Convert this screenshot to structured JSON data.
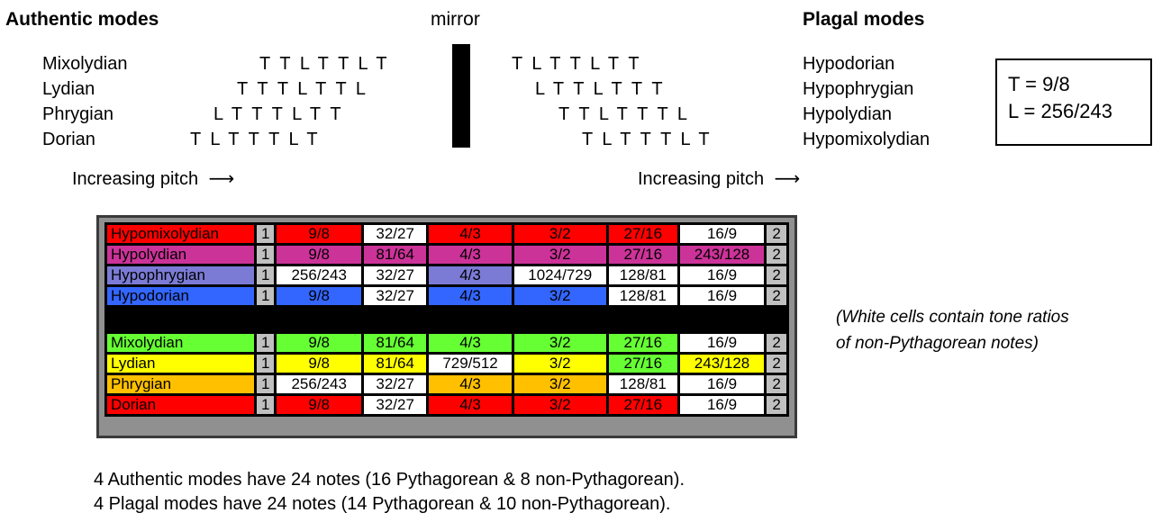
{
  "headers": {
    "authentic": "Authentic modes",
    "mirror": "mirror",
    "plagal": "Plagal modes"
  },
  "authentic_modes": [
    {
      "name": "Mixolydian",
      "sequence": "TTLTTLT"
    },
    {
      "name": "Lydian",
      "sequence": "TTTLTTL"
    },
    {
      "name": "Phrygian",
      "sequence": "LTTTLTT"
    },
    {
      "name": "Dorian",
      "sequence": "TLTTTLT"
    }
  ],
  "plagal_modes": [
    {
      "name": "Hypodorian",
      "sequence": "TLTTLTT"
    },
    {
      "name": "Hypophrygian",
      "sequence": "LTTLTTT"
    },
    {
      "name": "Hypolydian",
      "sequence": "TTLTTTL"
    },
    {
      "name": "Hypomixolydian",
      "sequence": "TLTTTLT"
    }
  ],
  "pitch_labels": {
    "left": "Increasing pitch",
    "right": "Increasing pitch",
    "arrow": "⟶"
  },
  "formula": {
    "line1": "T = 9/8",
    "line2": "L = 256/243"
  },
  "ratio_table": {
    "rows": [
      {
        "name": "Hypomixolydian",
        "name_color": "#ff0000",
        "values": [
          "1",
          "9/8",
          "32/27",
          "4/3",
          "3/2",
          "27/16",
          "16/9",
          "2"
        ],
        "colors": [
          "#c0c0c0",
          "#ff0000",
          "#ffffff",
          "#ff0000",
          "#ff0000",
          "#ff0000",
          "#ffffff",
          "#c0c0c0"
        ]
      },
      {
        "name": "Hypolydian",
        "name_color": "#cc3399",
        "values": [
          "1",
          "9/8",
          "81/64",
          "4/3",
          "3/2",
          "27/16",
          "243/128",
          "2"
        ],
        "colors": [
          "#c0c0c0",
          "#cc3399",
          "#cc3399",
          "#cc3399",
          "#cc3399",
          "#cc3399",
          "#cc3399",
          "#c0c0c0"
        ]
      },
      {
        "name": "Hypophrygian",
        "name_color": "#7b7bd6",
        "values": [
          "1",
          "256/243",
          "32/27",
          "4/3",
          "1024/729",
          "128/81",
          "16/9",
          "2"
        ],
        "colors": [
          "#c0c0c0",
          "#ffffff",
          "#ffffff",
          "#7b7bd6",
          "#ffffff",
          "#ffffff",
          "#ffffff",
          "#c0c0c0"
        ]
      },
      {
        "name": "Hypodorian",
        "name_color": "#3366ff",
        "values": [
          "1",
          "9/8",
          "32/27",
          "4/3",
          "3/2",
          "128/81",
          "16/9",
          "2"
        ],
        "colors": [
          "#c0c0c0",
          "#3366ff",
          "#ffffff",
          "#3366ff",
          "#3366ff",
          "#ffffff",
          "#ffffff",
          "#c0c0c0"
        ]
      },
      {
        "separator": true
      },
      {
        "name": "Mixolydian",
        "name_color": "#66ff33",
        "values": [
          "1",
          "9/8",
          "81/64",
          "4/3",
          "3/2",
          "27/16",
          "16/9",
          "2"
        ],
        "colors": [
          "#c0c0c0",
          "#66ff33",
          "#66ff33",
          "#66ff33",
          "#66ff33",
          "#66ff33",
          "#ffffff",
          "#c0c0c0"
        ]
      },
      {
        "name": "Lydian",
        "name_color": "#ffff00",
        "values": [
          "1",
          "9/8",
          "81/64",
          "729/512",
          "3/2",
          "27/16",
          "243/128",
          "2"
        ],
        "colors": [
          "#c0c0c0",
          "#ffff00",
          "#ffff00",
          "#ffffff",
          "#ffff00",
          "#66ff33",
          "#ffff00",
          "#c0c0c0"
        ]
      },
      {
        "name": "Phrygian",
        "name_color": "#ffc000",
        "values": [
          "1",
          "256/243",
          "32/27",
          "4/3",
          "3/2",
          "128/81",
          "16/9",
          "2"
        ],
        "colors": [
          "#c0c0c0",
          "#ffffff",
          "#ffffff",
          "#ffc000",
          "#ffc000",
          "#ffffff",
          "#ffffff",
          "#c0c0c0"
        ]
      },
      {
        "name": "Dorian",
        "name_color": "#ff0000",
        "values": [
          "1",
          "9/8",
          "32/27",
          "4/3",
          "3/2",
          "27/16",
          "16/9",
          "2"
        ],
        "colors": [
          "#c0c0c0",
          "#ff0000",
          "#ffffff",
          "#ff0000",
          "#ff0000",
          "#ff0000",
          "#ffffff",
          "#c0c0c0"
        ]
      }
    ]
  },
  "note": {
    "line1": "(White cells contain tone ratios",
    "line2": "of non-Pythagorean notes)"
  },
  "summary": {
    "line1": "4 Authentic modes have 24 notes (16 Pythagorean & 8 non-Pythagorean).",
    "line2": "4 Plagal modes have 24 notes (14 Pythagorean & 10 non-Pythagorean)."
  }
}
